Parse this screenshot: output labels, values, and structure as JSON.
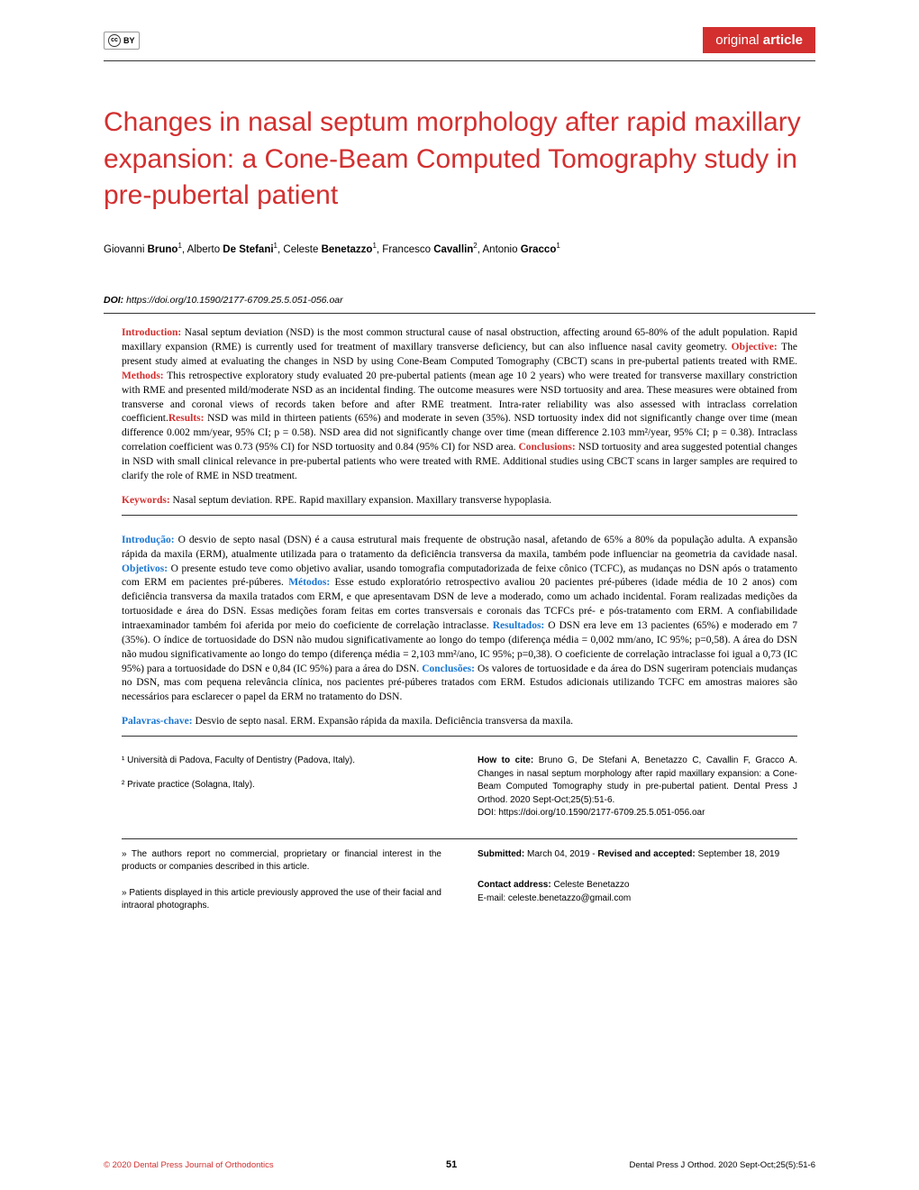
{
  "header": {
    "cc_label": "cc",
    "cc_by": "BY",
    "article_type_light": "original ",
    "article_type_bold": "article"
  },
  "title": "Changes in nasal septum morphology after rapid maxillary expansion: a Cone-Beam Computed Tomography study in pre-pubertal patient",
  "authors_html": "Giovanni <b>Bruno</b><sup>1</sup>, Alberto <b>De Stefani</b><sup>1</sup>, Celeste <b>Benetazzo</b><sup>1</sup>, Francesco <b>Cavallin</b><sup>2</sup>, Antonio <b>Gracco</b><sup>1</sup>",
  "doi": {
    "label": "DOI:",
    "url": "https://doi.org/10.1590/2177-6709.25.5.051-056.oar"
  },
  "abstract_en": {
    "intro_label": "Introduction:",
    "intro_text": " Nasal septum deviation (NSD) is the most common structural cause of nasal obstruction, affecting around 65-80% of the adult population. Rapid maxillary expansion (RME) is currently used for treatment of maxillary transverse deficiency, but can also influence nasal cavity geometry. ",
    "objective_label": "Objective:",
    "objective_text": " The present study aimed at evaluating the changes in NSD by using Cone-Beam Computed Tomography (CBCT) scans in pre-pubertal patients treated with RME. ",
    "methods_label": "Methods:",
    "methods_text": " This retrospective exploratory study evaluated 20 pre-pubertal patients (mean age 10  2 years) who were treated for transverse maxillary constriction with RME and presented mild/moderate NSD as an incidental finding. The outcome measures were NSD tortuosity and area. These measures were obtained from transverse and coronal views of records taken before and after RME treatment. Intra-rater reliability was also assessed with intraclass correlation coefficient.",
    "results_label": "Results:",
    "results_text": " NSD was mild in thirteen patients (65%) and moderate in seven (35%). NSD tortuosity index did not significantly change over time (mean difference 0.002 mm/year, 95% CI; p = 0.58). NSD area did not significantly change over time (mean difference 2.103 mm²/year, 95% CI; p = 0.38). Intraclass correlation coefficient was 0.73 (95% CI) for NSD tortuosity and 0.84 (95% CI) for NSD area. ",
    "conclusions_label": "Conclusions:",
    "conclusions_text": " NSD tortuosity and area suggested potential changes in NSD with small clinical relevance in pre-pubertal patients who were treated with RME. Additional studies using CBCT scans in larger samples are required to clarify the role of RME in NSD treatment."
  },
  "keywords_en": {
    "label": "Keywords:",
    "text": " Nasal septum deviation. RPE. Rapid maxillary expansion. Maxillary transverse hypoplasia."
  },
  "abstract_pt": {
    "intro_label": "Introdução:",
    "intro_text": " O desvio de septo nasal (DSN) é a causa estrutural mais frequente de obstrução nasal, afetando de 65% a 80% da população adulta. A expansão rápida da maxila (ERM), atualmente utilizada para o tratamento da deficiência transversa da maxila, também pode influenciar na geometria da cavidade nasal. ",
    "objective_label": "Objetivos:",
    "objective_text": " O presente estudo teve como objetivo avaliar, usando tomografia computadorizada de feixe cônico (TCFC), as mudanças no DSN após o tratamento com ERM em pacientes pré-púberes. ",
    "methods_label": "Métodos:",
    "methods_text": " Esse estudo exploratório retrospectivo avaliou 20 pacientes pré-púberes (idade média de 10  2 anos) com deficiência transversa da maxila tratados com ERM, e que apresentavam DSN de leve a moderado, como um achado incidental. Foram realizadas medições da tortuosidade e área do DSN. Essas medições foram feitas em cortes transversais e coronais das TCFCs pré- e pós-tratamento com ERM. A confiabilidade intraexaminador também foi aferida por meio do coeficiente de correlação intraclasse. ",
    "results_label": "Resultados:",
    "results_text": " O DSN era leve em 13 pacientes (65%) e moderado em 7 (35%). O índice de tortuosidade do DSN não mudou significativamente ao longo do tempo (diferença média = 0,002 mm/ano, IC 95%; p=0,58). A área do DSN não mudou significativamente ao longo do tempo (diferença média = 2,103 mm²/ano, IC 95%; p=0,38). O coeficiente de correlação intraclasse foi igual a 0,73 (IC 95%) para a tortuosidade do DSN e 0,84 (IC 95%) para a área do DSN. ",
    "conclusions_label": "Conclusões:",
    "conclusions_text": " Os valores de tortuosidade e da área do DSN sugeriram potenciais mudanças no DSN, mas com pequena relevância clínica, nos pacientes pré-púberes tratados com ERM. Estudos adicionais utilizando TCFC em amostras maiores são necessários para esclarecer o papel da ERM no tratamento do DSN."
  },
  "keywords_pt": {
    "label": "Palavras-chave:",
    "text": " Desvio de septo nasal. ERM. Expansão rápida da maxila. Deficiência transversa da maxila."
  },
  "affiliations": {
    "aff1": "¹ Università di Padova, Faculty of Dentistry (Padova, Italy).",
    "aff2": "² Private practice (Solagna, Italy)."
  },
  "howtocite": {
    "label": "How to cite:",
    "text": " Bruno G, De Stefani A, Benetazzo C, Cavallin F, Gracco A. Changes in nasal septum morphology after rapid maxillary expansion: a Cone-Beam Computed Tomography study in pre-pubertal patient. Dental Press J Orthod. 2020 Sept-Oct;25(5):51-6.",
    "doi": "DOI: https://doi.org/10.1590/2177-6709.25.5.051-056.oar"
  },
  "notes": {
    "disclosure": "» The authors report no commercial, proprietary or financial interest in the products or companies described in this article.",
    "consent": "» Patients displayed in this article previously approved the use of their facial and intraoral photographs."
  },
  "submitted": {
    "sub_label": "Submitted:",
    "sub_date": " March 04, 2019 - ",
    "rev_label": "Revised and accepted:",
    "rev_date": " September 18, 2019"
  },
  "contact": {
    "label": "Contact address:",
    "name": " Celeste Benetazzo",
    "email": "E-mail: celeste.benetazzo@gmail.com"
  },
  "footer": {
    "copyright": "© 2020 Dental Press Journal of Orthodontics",
    "pagenum": "51",
    "citation": "Dental Press J Orthod. 2020 Sept-Oct;25(5):51-6"
  }
}
